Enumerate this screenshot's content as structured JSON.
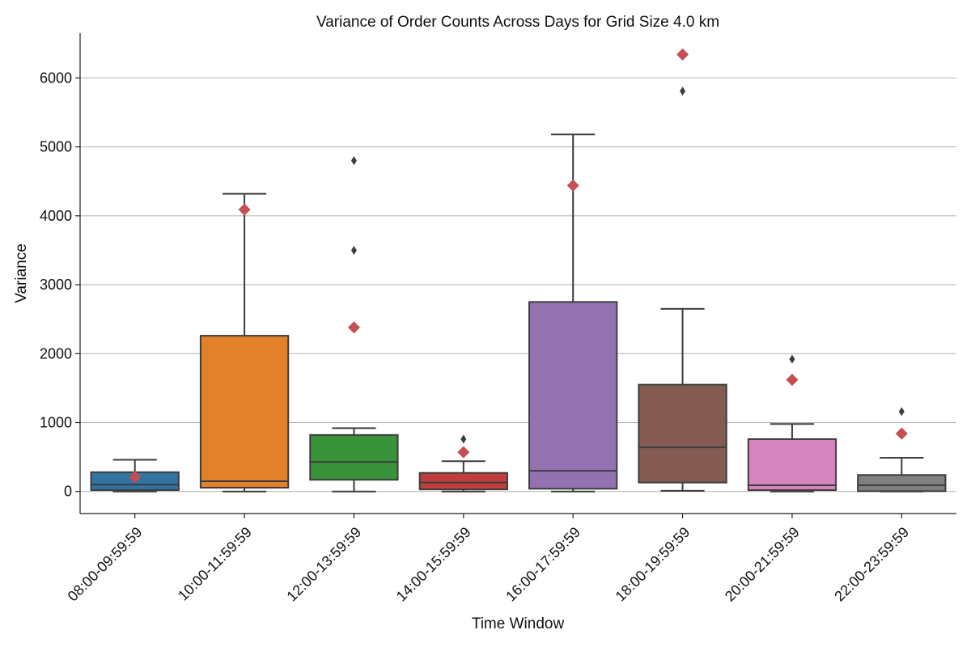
{
  "chart_data": {
    "type": "box",
    "title": "Variance of Order Counts Across Days for Grid Size 4.0 km",
    "xlabel": "Time Window",
    "ylabel": "Variance",
    "ylim": [
      -320,
      6650
    ],
    "yticks": [
      0,
      1000,
      2000,
      3000,
      4000,
      5000,
      6000
    ],
    "grid": "horizontal",
    "legend": "none",
    "mean_marker_color": "#c44e52",
    "box_edge_color": "#3d3d3d",
    "categories": [
      "08:00-09:59:59",
      "10:00-11:59:59",
      "12:00-13:59:59",
      "14:00-15:59:59",
      "16:00-17:59:59",
      "18:00-19:59:59",
      "20:00-21:59:59",
      "22:00-23:59:59"
    ],
    "boxes": [
      {
        "category": "08:00-09:59:59",
        "color": "#3274a1",
        "whisker_low": 0,
        "q1": 20,
        "median": 100,
        "q3": 280,
        "whisker_high": 460,
        "mean": 210,
        "outliers": []
      },
      {
        "category": "10:00-11:59:59",
        "color": "#e1812c",
        "whisker_low": 0,
        "q1": 55,
        "median": 150,
        "q3": 2260,
        "whisker_high": 4320,
        "mean": 4090,
        "outliers": []
      },
      {
        "category": "12:00-13:59:59",
        "color": "#3a923a",
        "whisker_low": 0,
        "q1": 170,
        "median": 430,
        "q3": 820,
        "whisker_high": 920,
        "mean": 2380,
        "outliers": [
          3500,
          4800
        ]
      },
      {
        "category": "14:00-15:59:59",
        "color": "#c03d3e",
        "whisker_low": 0,
        "q1": 30,
        "median": 130,
        "q3": 270,
        "whisker_high": 440,
        "mean": 570,
        "outliers": [
          760
        ]
      },
      {
        "category": "16:00-17:59:59",
        "color": "#9372b2",
        "whisker_low": 0,
        "q1": 40,
        "median": 300,
        "q3": 2750,
        "whisker_high": 5180,
        "mean": 4440,
        "outliers": []
      },
      {
        "category": "18:00-19:59:59",
        "color": "#845b53",
        "whisker_low": 10,
        "q1": 130,
        "median": 640,
        "q3": 1550,
        "whisker_high": 2650,
        "mean": 6340,
        "outliers": [
          5810
        ]
      },
      {
        "category": "20:00-21:59:59",
        "color": "#d684bd",
        "whisker_low": 0,
        "q1": 20,
        "median": 90,
        "q3": 760,
        "whisker_high": 980,
        "mean": 1620,
        "outliers": [
          1920
        ]
      },
      {
        "category": "22:00-23:59:59",
        "color": "#7f7f7f",
        "whisker_low": 0,
        "q1": 5,
        "median": 90,
        "q3": 240,
        "whisker_high": 490,
        "mean": 840,
        "outliers": [
          1160
        ]
      }
    ]
  }
}
